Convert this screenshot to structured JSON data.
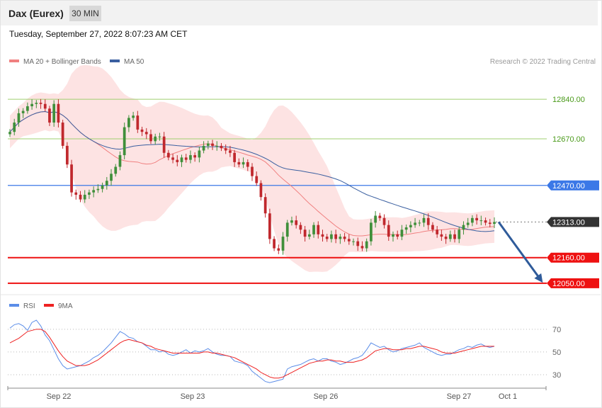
{
  "header": {
    "title": "Dax (Eurex)",
    "interval": "30 MIN",
    "datetime": "Tuesday, September 27, 2022 8:07:23 AM CET"
  },
  "legend": {
    "ma20": "MA 20 + Bollinger Bands",
    "ma50": "MA 50",
    "copyright": "Research © 2022 Trading Central",
    "rsi": "RSI",
    "rsi_ma": "9MA"
  },
  "colors": {
    "up_candle": "#3f8f3a",
    "down_candle": "#c0282d",
    "bollinger_fill": "#fde3e3",
    "ma20": "#f08080",
    "ma50": "#3a5fa0",
    "resistance": "#9fcf6f",
    "pivot": "#3b78e7",
    "support": "#ee1111",
    "current": "#333333",
    "arrow": "#2f5b9a",
    "rsi": "#5b8de8",
    "rsi_ma": "#ee2222"
  },
  "chart_data": [
    {
      "type": "candlestick",
      "x_labels": [
        "Sep 22",
        "Sep 23",
        "Sep 26",
        "Sep 27",
        "Oct 1"
      ],
      "ylim": [
        12010,
        12950
      ],
      "levels": [
        {
          "label": "12840.00",
          "value": 12840,
          "kind": "resistance"
        },
        {
          "label": "12670.00",
          "value": 12670,
          "kind": "resistance"
        },
        {
          "label": "12470.00",
          "value": 12470,
          "kind": "pivot"
        },
        {
          "label": "12313.00",
          "value": 12313,
          "kind": "current"
        },
        {
          "label": "12160.00",
          "value": 12160,
          "kind": "support"
        },
        {
          "label": "12050.00",
          "value": 12050,
          "kind": "support"
        }
      ],
      "close": [
        12700,
        12740,
        12780,
        12790,
        12810,
        12820,
        12825,
        12820,
        12800,
        12740,
        12820,
        12740,
        12640,
        12560,
        12440,
        12430,
        12410,
        12430,
        12440,
        12450,
        12455,
        12470,
        12490,
        12520,
        12550,
        12600,
        12720,
        12760,
        12770,
        12710,
        12700,
        12690,
        12660,
        12680,
        12680,
        12610,
        12590,
        12580,
        12570,
        12590,
        12580,
        12600,
        12590,
        12620,
        12640,
        12650,
        12640,
        12640,
        12630,
        12620,
        12610,
        12570,
        12560,
        12570,
        12550,
        12510,
        12480,
        12420,
        12350,
        12240,
        12200,
        12190,
        12250,
        12310,
        12320,
        12300,
        12280,
        12250,
        12260,
        12300,
        12260,
        12250,
        12240,
        12260,
        12240,
        12250,
        12240,
        12230,
        12230,
        12210,
        12200,
        12230,
        12310,
        12340,
        12330,
        12300,
        12250,
        12260,
        12250,
        12280,
        12290,
        12300,
        12310,
        12310,
        12330,
        12300,
        12280,
        12260,
        12250,
        12240,
        12260,
        12240,
        12280,
        12300,
        12310,
        12330,
        12320,
        12320,
        12310,
        12305,
        12313
      ],
      "events": [
        "pole_high",
        "gap_down",
        "sharp_drop",
        "rebound",
        "flag",
        "breakout_attempt"
      ],
      "forecast_target": 12050,
      "ma20_visible": true,
      "ma50_visible": true
    },
    {
      "type": "line",
      "series": [
        {
          "name": "RSI",
          "values": [
            71,
            74,
            75,
            73,
            69,
            76,
            78,
            73,
            65,
            60,
            52,
            44,
            38,
            35,
            36,
            37,
            38,
            40,
            42,
            45,
            47,
            50,
            54,
            58,
            63,
            68,
            66,
            63,
            62,
            59,
            58,
            55,
            52,
            52,
            50,
            51,
            48,
            47,
            48,
            50,
            52,
            49,
            51,
            50,
            51,
            53,
            50,
            48,
            47,
            47,
            46,
            42,
            41,
            40,
            38,
            33,
            30,
            27,
            24,
            23,
            24,
            25,
            26,
            35,
            37,
            38,
            39,
            41,
            43,
            44,
            42,
            44,
            44,
            42,
            41,
            39,
            40,
            42,
            44,
            45,
            47,
            52,
            58,
            56,
            54,
            55,
            52,
            50,
            51,
            53,
            54,
            55,
            56,
            58,
            54,
            52,
            50,
            48,
            47,
            48,
            48,
            50,
            52,
            53,
            55,
            54,
            56,
            57,
            55,
            54,
            55
          ]
        },
        {
          "name": "9MA",
          "values": [
            58,
            60,
            62,
            65,
            68,
            69,
            70,
            70,
            68,
            63,
            57,
            51,
            46,
            42,
            40,
            38,
            38,
            38,
            39,
            41,
            43,
            46,
            49,
            52,
            55,
            58,
            60,
            61,
            60,
            59,
            58,
            56,
            55,
            53,
            52,
            51,
            50,
            49,
            49,
            49,
            49,
            49,
            49,
            49,
            50,
            50,
            49,
            49,
            48,
            47,
            46,
            45,
            43,
            41,
            39,
            37,
            35,
            32,
            30,
            28,
            27,
            27,
            28,
            30,
            32,
            34,
            36,
            38,
            40,
            41,
            42,
            42,
            43,
            43,
            42,
            42,
            41,
            41,
            41,
            42,
            43,
            45,
            48,
            51,
            52,
            53,
            53,
            52,
            52,
            52,
            53,
            53,
            54,
            55,
            55,
            54,
            53,
            52,
            50,
            49,
            49,
            49,
            50,
            51,
            52,
            53,
            54,
            55,
            55,
            55,
            55
          ]
        }
      ],
      "y_ticks": [
        "70",
        "50",
        "30"
      ],
      "ylim": [
        20,
        78
      ]
    }
  ]
}
